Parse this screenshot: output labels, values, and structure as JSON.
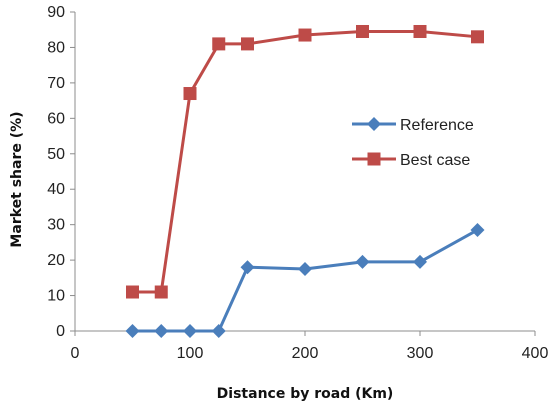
{
  "chart_data": {
    "type": "line",
    "xlabel": "Distance  by road (Km)",
    "ylabel": "Market share (%)",
    "xlim": [
      0,
      400
    ],
    "ylim": [
      0,
      90
    ],
    "xticks": [
      0,
      100,
      200,
      300,
      400
    ],
    "yticks": [
      0,
      10,
      20,
      30,
      40,
      50,
      60,
      70,
      80,
      90
    ],
    "grid": false,
    "legend_position": "center-right",
    "series": [
      {
        "name": "Reference",
        "color": "#4a7ebb",
        "marker": "diamond",
        "x": [
          50,
          75,
          100,
          125,
          150,
          200,
          250,
          300,
          350
        ],
        "y": [
          0,
          0,
          0,
          0,
          18,
          17.5,
          19.5,
          19.5,
          28.5
        ]
      },
      {
        "name": "Best case",
        "color": "#be4b48",
        "marker": "square",
        "x": [
          50,
          75,
          100,
          125,
          150,
          200,
          250,
          300,
          350
        ],
        "y": [
          11,
          11,
          67,
          81,
          81,
          83.5,
          84.5,
          84.5,
          83
        ]
      }
    ]
  }
}
